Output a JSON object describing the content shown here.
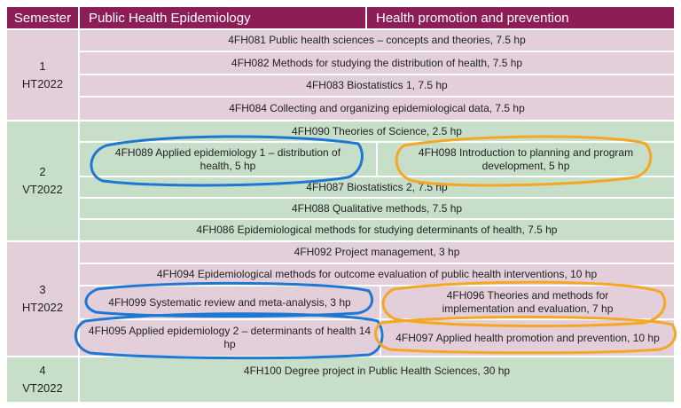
{
  "header": {
    "semester": "Semester",
    "track_a": "Public Health Epidemiology",
    "track_b": "Health promotion and prevention"
  },
  "blocks": [
    {
      "number": "1",
      "term": "HT2022",
      "color": "#e3cfd9",
      "courses": [
        "4FH081  Public health sciences – concepts and theories, 7.5 hp",
        "4FH082 Methods for studying the distribution of health, 7.5 hp",
        "4FH083 Biostatistics 1, 7.5 hp",
        "4FH084 Collecting and organizing epidemiological data, 7.5 hp"
      ]
    },
    {
      "number": "2",
      "term": "VT2022",
      "color": "#c7dfc9",
      "row1": "4FH090 Theories of Science, 2.5 hp",
      "split_left": "4FH089 Applied epidemiology 1 – distribution of health, 5 hp",
      "split_right": "4FH098 Introduction to planning and program development, 5 hp",
      "courses": [
        "4FH087 Biostatistics 2, 7.5 hp",
        "4FH088 Qualitative methods, 7.5 hp",
        "4FH086 Epidemiological methods for studying determinants of health, 7.5 hp"
      ]
    },
    {
      "number": "3",
      "term": "HT2022",
      "color": "#e3cfd9",
      "row1": "4FH092 Project management, 3 hp",
      "row2": "4FH094 Epidemiological methods for outcome evaluation of public health interventions, 10 hp",
      "split1_left": "4FH099 Systematic review and meta-analysis, 3 hp",
      "split1_right": "4FH096 Theories and methods for implementation and evaluation, 7 hp",
      "split2_left": "4FH095 Applied epidemiology 2 – determinants of health 14 hp",
      "split2_right": "4FH097 Applied health promotion and prevention, 10 hp"
    },
    {
      "number": "4",
      "term": "VT2022",
      "color": "#c7dfc9",
      "course": "4FH100 Degree project in Public Health Sciences, 30 hp"
    }
  ],
  "annotation_colors": {
    "epidemiology_track": "#1f77d4",
    "health_promotion_track": "#f5a623"
  }
}
